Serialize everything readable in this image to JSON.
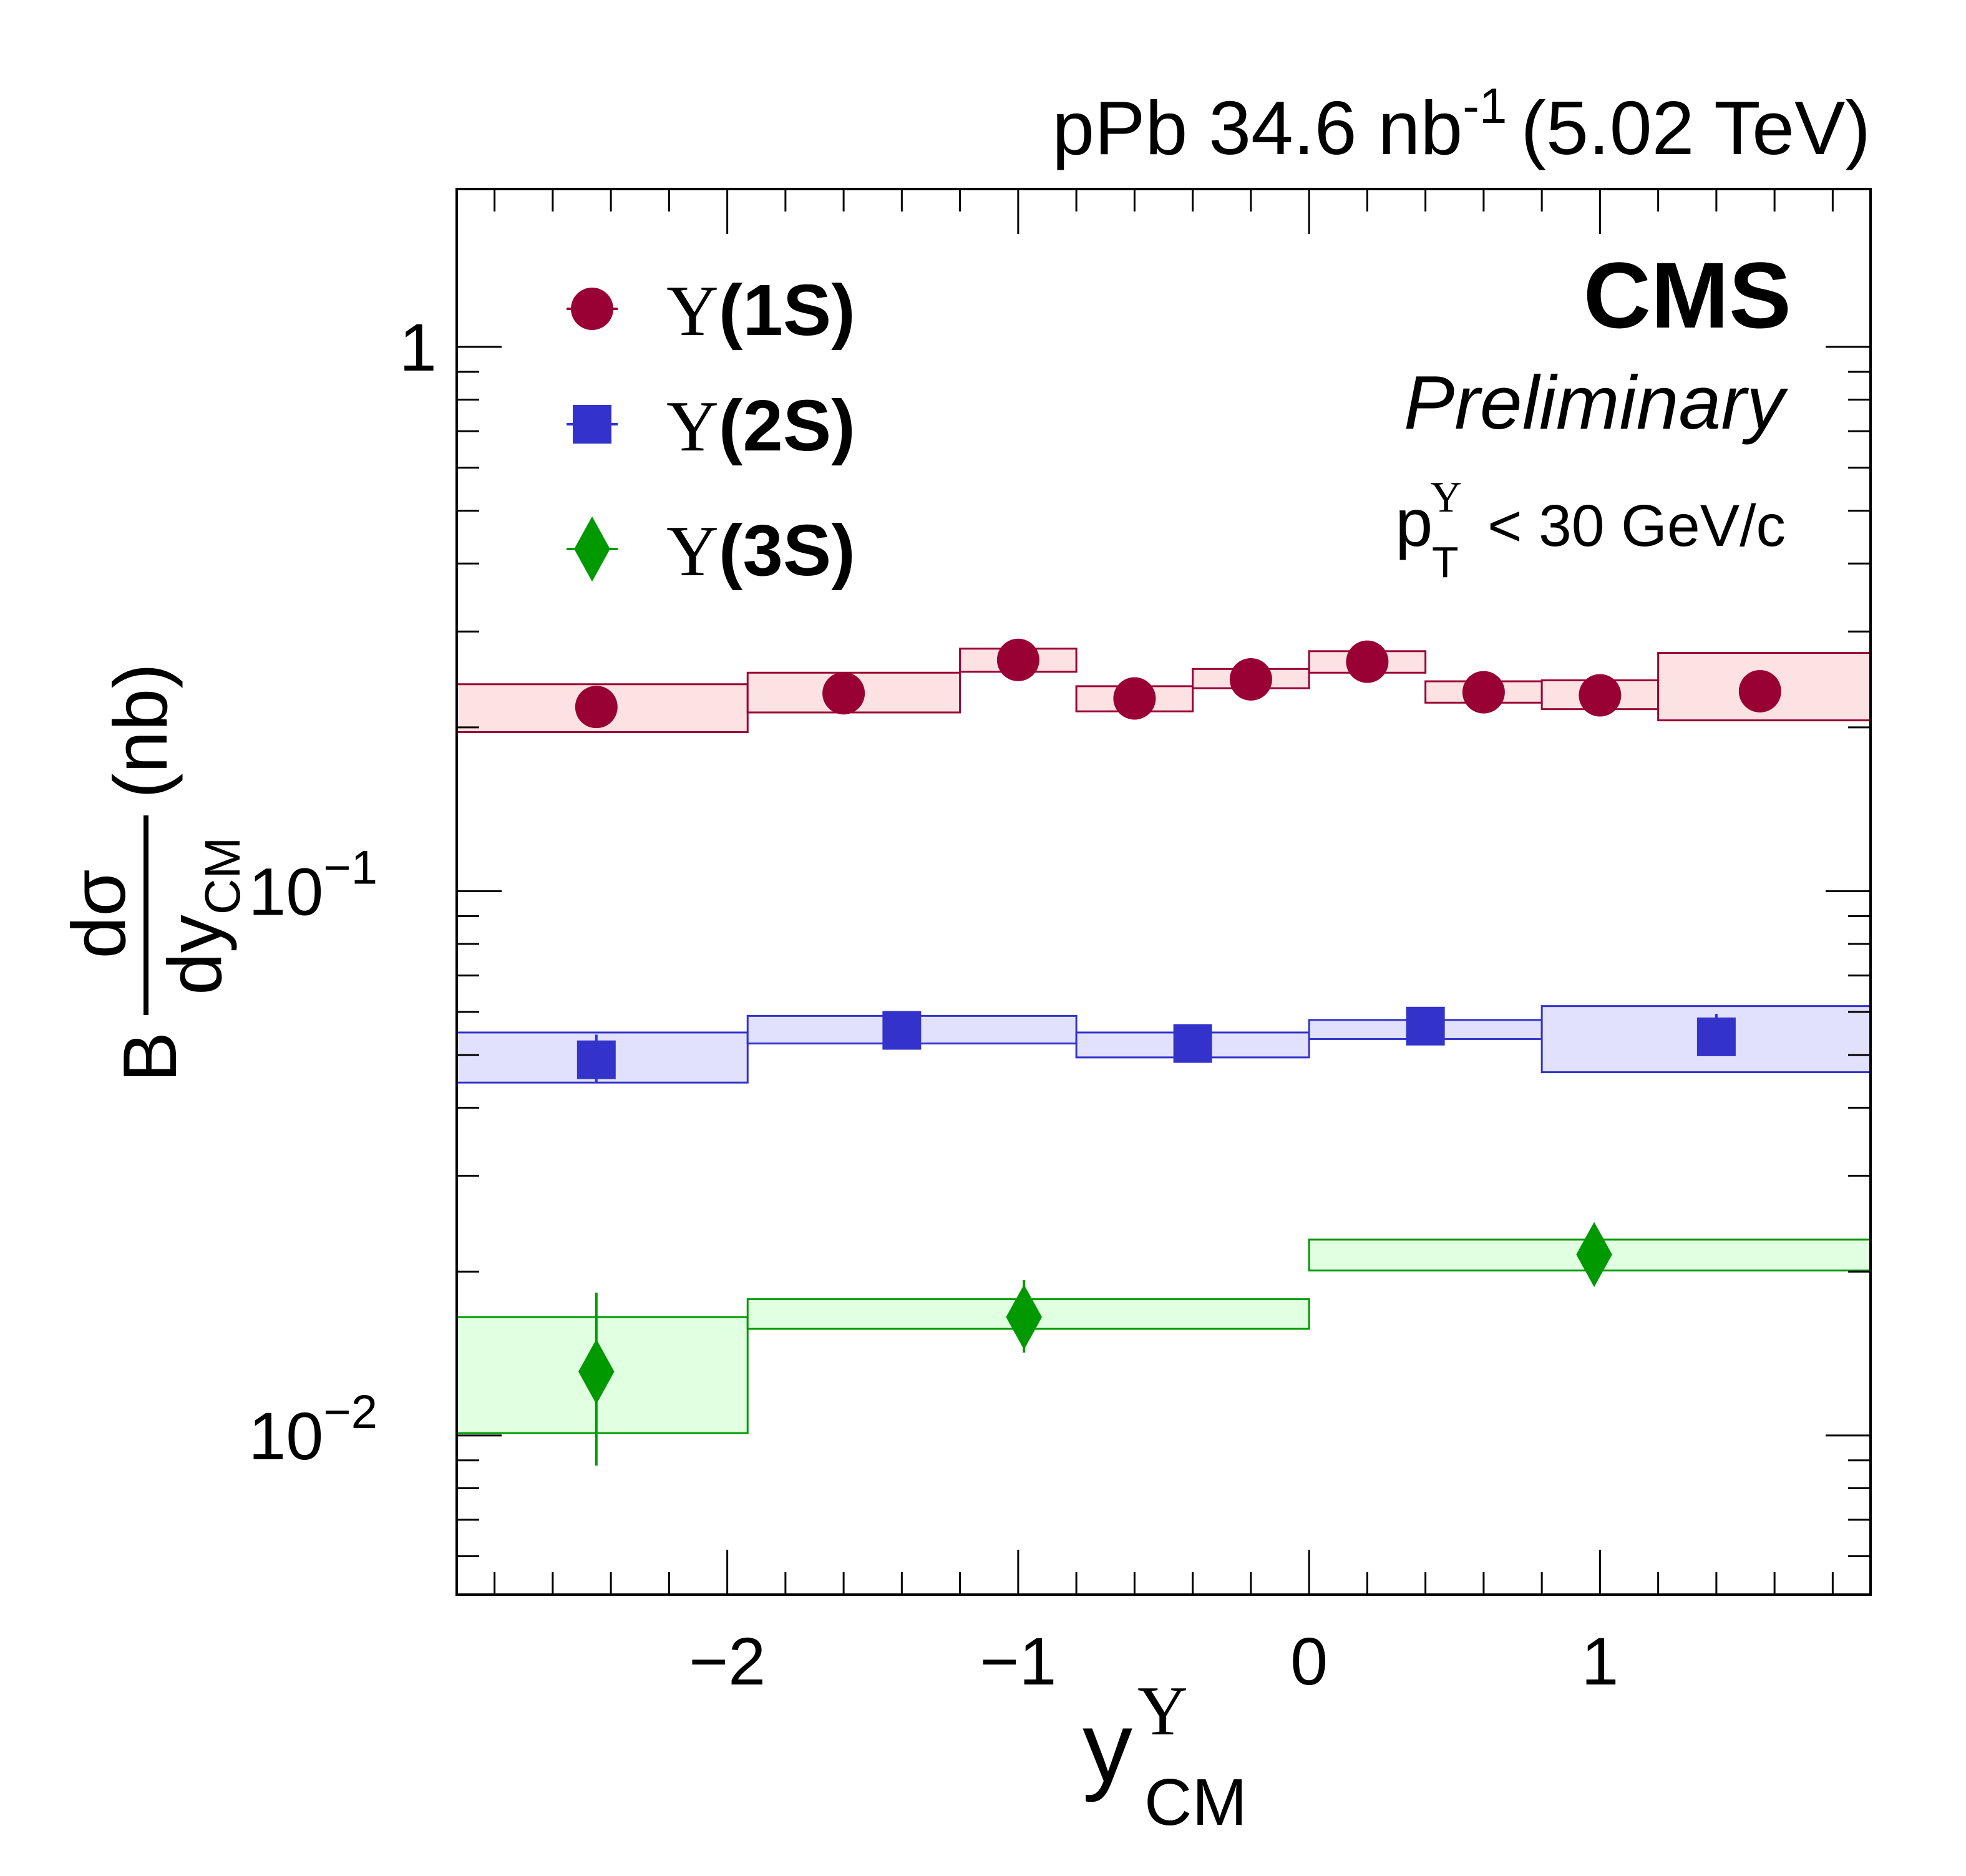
{
  "header": {
    "dataset": "pPb 34.6 nb",
    "lumi_sup": "-1",
    "energy": "(5.02 TeV)"
  },
  "experiment": {
    "name": "CMS",
    "status": "Preliminary"
  },
  "cut": {
    "p": "p",
    "sup": "Υ",
    "sub": "T",
    "rest": " < 30 GeV/c"
  },
  "chart_data": {
    "type": "scatter",
    "scale_y": "log",
    "xlim": [
      -2.93,
      1.93
    ],
    "ylim": [
      0.0051,
      1.95
    ],
    "xlabel": {
      "base": "y",
      "sup": "Υ",
      "sub": "CM"
    },
    "ylabel": {
      "prefix": "B",
      "num": "dσ",
      "den": "dy",
      "den_sub": "CM",
      "unit": "(nb)"
    },
    "x_tick_labels": [
      {
        "value": -2,
        "label": "−2"
      },
      {
        "value": -1,
        "label": "−1"
      },
      {
        "value": 0,
        "label": "0"
      },
      {
        "value": 1,
        "label": "1"
      }
    ],
    "y_tick_labels": [
      {
        "value": 1,
        "label": "1",
        "exp": ""
      },
      {
        "value": 0.1,
        "label": "10",
        "exp": "−1"
      },
      {
        "value": 0.01,
        "label": "10",
        "exp": "−2"
      }
    ],
    "legend": {
      "position": "top-left"
    },
    "series": [
      {
        "name": "Υ",
        "state": "(1S)",
        "marker": "circle",
        "color": "#990033",
        "fill": "#fde2e4",
        "points": [
          {
            "x": -2.45,
            "y": 0.218,
            "lo": -2.93,
            "hi": -1.93,
            "sys_lo": 0.196,
            "sys_hi": 0.24
          },
          {
            "x": -1.6,
            "y": 0.231,
            "lo": -1.93,
            "hi": -1.2,
            "sys_lo": 0.213,
            "sys_hi": 0.252
          },
          {
            "x": -1.0,
            "y": 0.266,
            "lo": -1.2,
            "hi": -0.8,
            "sys_lo": 0.253,
            "sys_hi": 0.279
          },
          {
            "x": -0.6,
            "y": 0.226,
            "lo": -0.8,
            "hi": -0.4,
            "sys_lo": 0.214,
            "sys_hi": 0.238
          },
          {
            "x": -0.2,
            "y": 0.245,
            "lo": -0.4,
            "hi": 0.0,
            "sys_lo": 0.236,
            "sys_hi": 0.256
          },
          {
            "x": 0.2,
            "y": 0.264,
            "lo": 0.0,
            "hi": 0.4,
            "sys_lo": 0.252,
            "sys_hi": 0.276
          },
          {
            "x": 0.6,
            "y": 0.232,
            "lo": 0.4,
            "hi": 0.8,
            "sys_lo": 0.222,
            "sys_hi": 0.243
          },
          {
            "x": 1.0,
            "y": 0.229,
            "lo": 0.8,
            "hi": 1.2,
            "sys_lo": 0.216,
            "sys_hi": 0.244
          },
          {
            "x": 1.55,
            "y": 0.233,
            "lo": 1.2,
            "hi": 1.93,
            "sys_lo": 0.206,
            "sys_hi": 0.274
          }
        ]
      },
      {
        "name": "Υ",
        "state": "(2S)",
        "marker": "square",
        "color": "#3333cc",
        "fill": "#e1e1fb",
        "points": [
          {
            "x": -2.45,
            "y": 0.049,
            "lo": -2.93,
            "hi": -1.93,
            "sys_lo": 0.0445,
            "sys_hi": 0.055,
            "stat_lo": 0.0445,
            "stat_hi": 0.0545
          },
          {
            "x": -1.4,
            "y": 0.0555,
            "lo": -1.93,
            "hi": -0.8,
            "sys_lo": 0.0525,
            "sys_hi": 0.059
          },
          {
            "x": -0.4,
            "y": 0.0525,
            "lo": -0.8,
            "hi": 0.0,
            "sys_lo": 0.0495,
            "sys_hi": 0.055
          },
          {
            "x": 0.4,
            "y": 0.0565,
            "lo": 0.0,
            "hi": 0.8,
            "sys_lo": 0.0535,
            "sys_hi": 0.058
          },
          {
            "x": 1.4,
            "y": 0.054,
            "lo": 0.8,
            "hi": 1.93,
            "sys_lo": 0.0465,
            "sys_hi": 0.0615,
            "stat_lo": 0.0505,
            "stat_hi": 0.0595
          }
        ]
      },
      {
        "name": "Υ",
        "state": "(3S)",
        "marker": "diamond",
        "color": "#009900",
        "fill": "#e1ffe1",
        "points": [
          {
            "x": -2.45,
            "y": 0.0131,
            "lo": -2.93,
            "hi": -1.93,
            "sys_lo": 0.0101,
            "sys_hi": 0.0165,
            "stat_lo": 0.0088,
            "stat_hi": 0.0183
          },
          {
            "x": -0.98,
            "y": 0.0165,
            "lo": -1.93,
            "hi": 0.0,
            "sys_lo": 0.0157,
            "sys_hi": 0.0178,
            "stat_lo": 0.0142,
            "stat_hi": 0.0193
          },
          {
            "x": 0.98,
            "y": 0.0215,
            "lo": 0.0,
            "hi": 1.93,
            "sys_lo": 0.0201,
            "sys_hi": 0.0229,
            "stat_lo": 0.0192,
            "stat_hi": 0.0238
          }
        ]
      }
    ]
  }
}
